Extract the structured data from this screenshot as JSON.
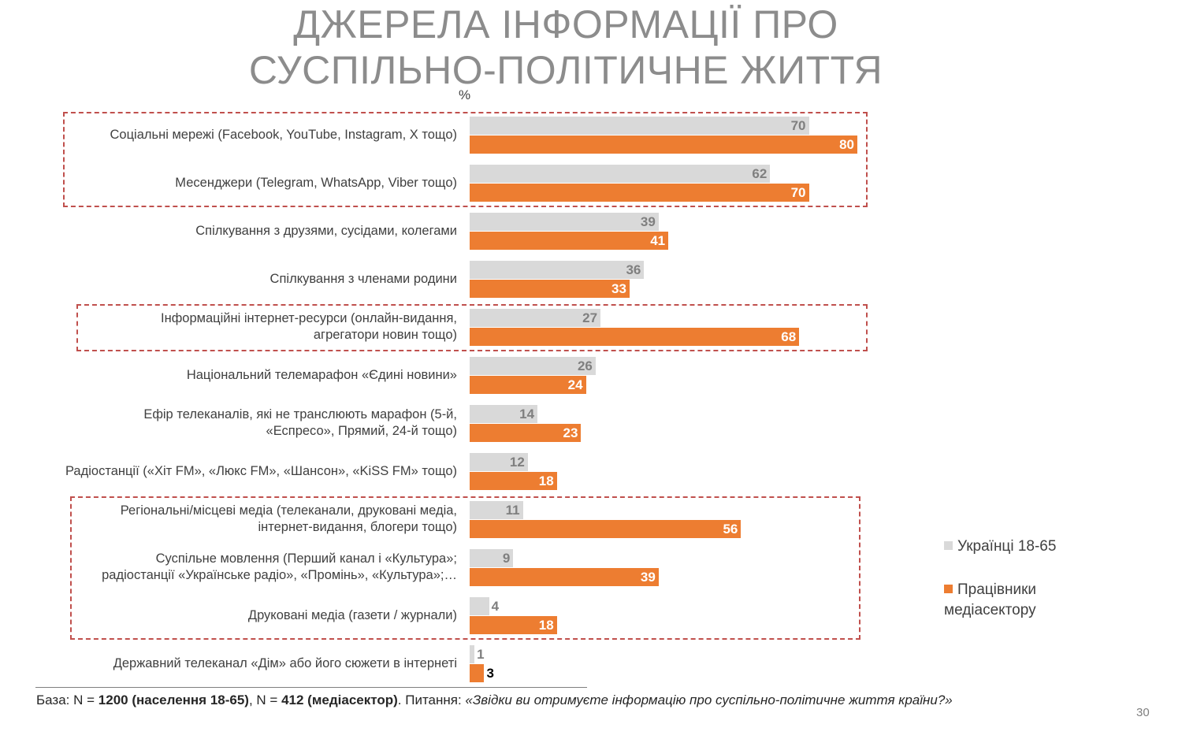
{
  "title": {
    "line1": "ДЖЕРЕЛА ІНФОРМАЦІЇ ПРО",
    "line2": "СУСПІЛЬНО-ПОЛІТИЧНЕ ЖИТТЯ"
  },
  "unit": "%",
  "chart_data": {
    "type": "bar",
    "orientation": "horizontal",
    "categories": [
      [
        "Соціальні мережі (Facebook, YouTube, Instagram, X тощо)"
      ],
      [
        "Месенджери (Telegram, WhatsApp, Viber тощо)"
      ],
      [
        "Спілкування з друзями, сусідами, колегами"
      ],
      [
        "Спілкування з членами родини"
      ],
      [
        "Інформаційні інтернет-ресурси (онлайн-видання,",
        "агрегатори новин тощо)"
      ],
      [
        "Національний телемарафон «Єдині новини»"
      ],
      [
        "Ефір телеканалів, які не транслюють марафон (5-й,",
        "«Еспресо», Прямий, 24-й тощо)"
      ],
      [
        "Радіостанції («Хіт FM», «Люкс FM», «Шансон», «KiSS FM» тощо)"
      ],
      [
        "Регіональні/місцеві медіа (телеканали, друковані медіа,",
        "інтернет-видання, блогери тощо)"
      ],
      [
        "Суспільне мовлення (Перший канал і «Культура»;",
        "радіостанції «Українське радіо», «Промінь», «Культура»;…"
      ],
      [
        "Друковані медіа (газети / журнали)"
      ],
      [
        "Державний телеканал «Дім» або його сюжети в інтернеті"
      ]
    ],
    "series": [
      {
        "name": "Українці 18-65",
        "color": "#d9d9d9",
        "values": [
          70,
          62,
          39,
          36,
          27,
          26,
          14,
          12,
          11,
          9,
          4,
          1
        ]
      },
      {
        "name": "Працівники медіасектору",
        "color": "#ed7d31",
        "values": [
          80,
          70,
          41,
          33,
          68,
          24,
          23,
          18,
          56,
          39,
          18,
          3
        ]
      }
    ],
    "xlim": [
      0,
      80
    ],
    "highlight_groups": [
      [
        0,
        1
      ],
      [
        4
      ],
      [
        8,
        9,
        10
      ]
    ],
    "highlight_color": "#c0504d",
    "legend_position": "right"
  },
  "legend": {
    "item1": "Українці 18-65",
    "item2_line1": "Працівники",
    "item2_line2": "медіасектору"
  },
  "footer": {
    "base_label": "База: N = ",
    "n1": "1200 (населення 18-65)",
    "sep": ", N = ",
    "n2": "412 (медіасектор)",
    "question_label": ". Питання: ",
    "question": "«Звідки ви отримуєте інформацію про суспільно-політичне життя країни?»"
  },
  "page_number": "30"
}
